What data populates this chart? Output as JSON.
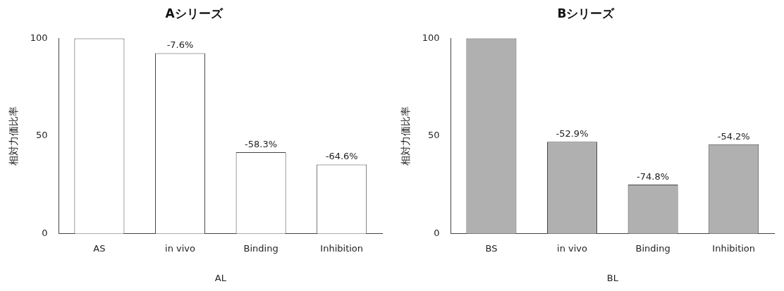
{
  "chart_data": [
    {
      "type": "bar",
      "title": "Aシリーズ",
      "xlabel": "AL",
      "ylabel": "相対力価比率",
      "categories": [
        "AS",
        "in vivo",
        "Binding",
        "Inhibition"
      ],
      "values": [
        100,
        92.4,
        41.7,
        35.4
      ],
      "color": "#ffffff",
      "ylim": [
        0,
        100
      ],
      "yticks": [
        0,
        50,
        100
      ],
      "grid": false,
      "legend": false,
      "annotations": [
        {
          "text": "-7.6%",
          "x": "in vivo",
          "y": 92.4
        },
        {
          "text": "-58.3%",
          "x": "Binding",
          "y": 41.7
        },
        {
          "text": "-64.6%",
          "x": "Inhibition",
          "y": 35.4
        }
      ]
    },
    {
      "type": "bar",
      "title": "Bシリーズ",
      "xlabel": "BL",
      "ylabel": "相対力価比率",
      "categories": [
        "BS",
        "in vivo",
        "Binding",
        "Inhibition"
      ],
      "values": [
        100,
        47.1,
        25.2,
        45.8
      ],
      "color": "#b0b0b0",
      "ylim": [
        0,
        100
      ],
      "yticks": [
        0,
        50,
        100
      ],
      "grid": false,
      "legend": false,
      "annotations": [
        {
          "text": "-52.9%",
          "x": "in vivo",
          "y": 47.1
        },
        {
          "text": "-74.8%",
          "x": "Binding",
          "y": 25.2
        },
        {
          "text": "-54.2%",
          "x": "Inhibition",
          "y": 45.8
        }
      ]
    }
  ]
}
